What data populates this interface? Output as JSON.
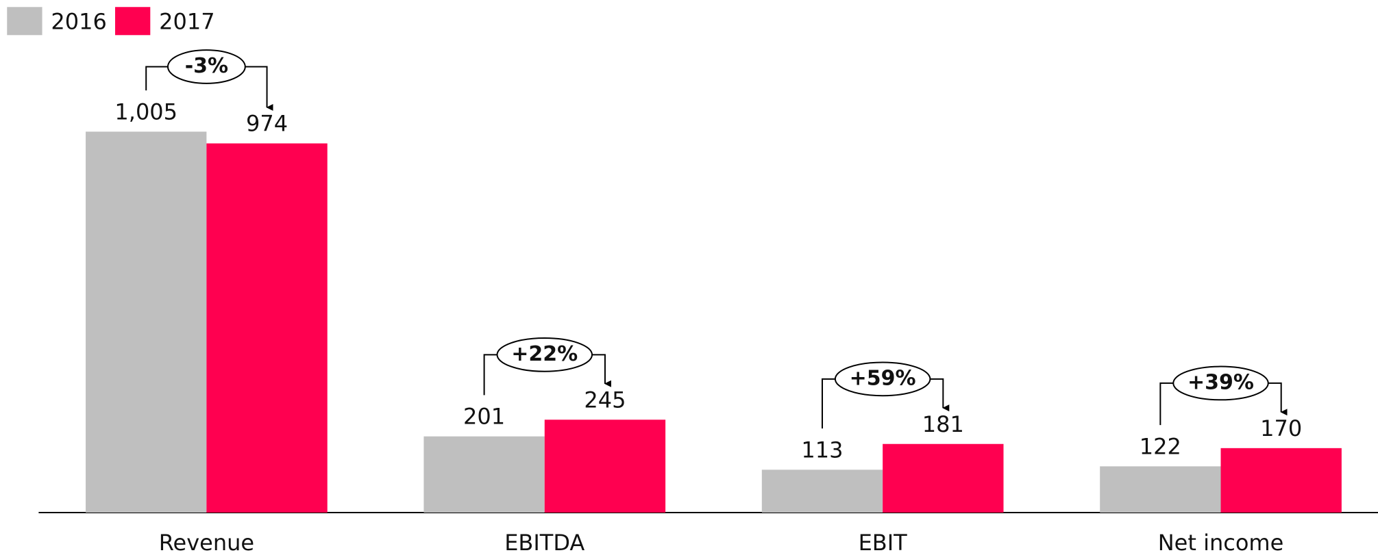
{
  "chart_data": {
    "type": "bar",
    "categories": [
      "Revenue",
      "EBITDA",
      "EBIT",
      "Net income"
    ],
    "series": [
      {
        "name": "2016",
        "color": "#bfbfbf",
        "values": [
          1005,
          201,
          113,
          122
        ],
        "value_labels": [
          "1,005",
          "201",
          "113",
          "122"
        ]
      },
      {
        "name": "2017",
        "color": "#ff0050",
        "values": [
          974,
          245,
          181,
          170
        ]
      }
    ],
    "annotations": [
      "-3%",
      "+22%",
      "+59%",
      "+39%"
    ],
    "legend": "top-left"
  }
}
